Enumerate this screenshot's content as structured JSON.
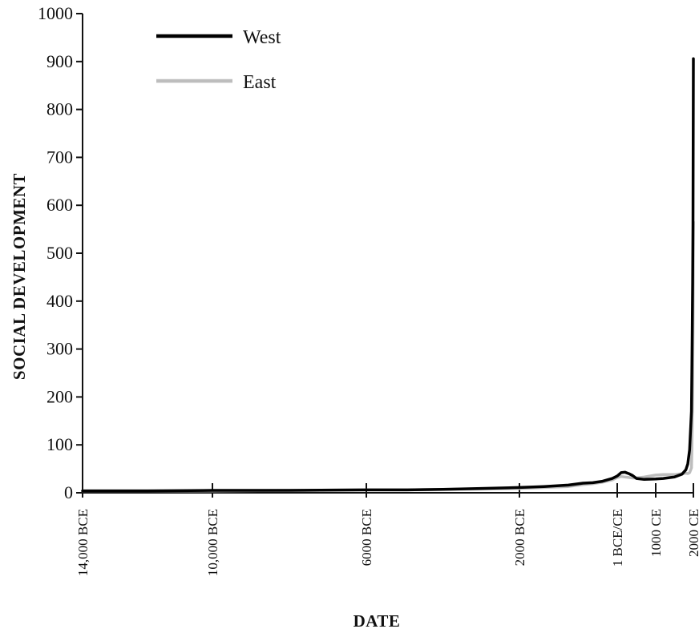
{
  "chart_data": {
    "type": "line",
    "title": "",
    "xlabel": "DATE",
    "ylabel": "SOCIAL DEVELOPMENT",
    "ylim": [
      0,
      1000
    ],
    "xlim": [
      -14000,
      2000
    ],
    "yticks": [
      0,
      100,
      200,
      300,
      400,
      500,
      600,
      700,
      800,
      900,
      1000
    ],
    "ytick_labels": [
      "0",
      "100",
      "200",
      "300",
      "400",
      "500",
      "600",
      "700",
      "800",
      "900",
      "1000"
    ],
    "xticks": [
      -14000,
      -10000,
      -6000,
      -2000,
      0,
      1000,
      2000
    ],
    "xtick_labels": [
      "14,000 BCE",
      "10,000 BCE",
      "6000 BCE",
      "2000 BCE",
      "1 BCE/CE",
      "1000 CE",
      "2000 CE"
    ],
    "legend_position": "top-left",
    "series": [
      {
        "name": "West",
        "color": "#000000",
        "x": [
          -14000,
          -12000,
          -10000,
          -8000,
          -6000,
          -5000,
          -4000,
          -3000,
          -2000,
          -1500,
          -1000,
          -700,
          -500,
          -300,
          -100,
          0,
          100,
          200,
          300,
          400,
          500,
          700,
          1000,
          1200,
          1400,
          1500,
          1600,
          1700,
          1800,
          1850,
          1900,
          1950,
          1960,
          1970,
          1980,
          1990,
          2000
        ],
        "y": [
          4,
          4,
          5,
          5,
          6,
          6,
          7,
          9,
          11,
          13,
          16,
          20,
          21,
          24,
          30,
          35,
          42,
          43,
          40,
          36,
          30,
          28,
          29,
          30,
          32,
          33,
          36,
          39,
          48,
          60,
          90,
          170,
          250,
          340,
          440,
          560,
          906
        ]
      },
      {
        "name": "East",
        "color": "#bdbdbd",
        "x": [
          -14000,
          -12000,
          -10000,
          -8000,
          -6000,
          -5000,
          -4000,
          -3000,
          -2000,
          -1500,
          -1000,
          -700,
          -500,
          -300,
          -100,
          0,
          100,
          200,
          300,
          400,
          500,
          700,
          1000,
          1200,
          1400,
          1500,
          1600,
          1700,
          1800,
          1850,
          1900,
          1950,
          1960,
          1970,
          1980,
          1990,
          2000
        ],
        "y": [
          4,
          4,
          4,
          5,
          6,
          6,
          7,
          8,
          9,
          11,
          13,
          17,
          19,
          22,
          27,
          32,
          34,
          33,
          32,
          31,
          31,
          33,
          37,
          38,
          38,
          38,
          39,
          40,
          41,
          40,
          42,
          52,
          90,
          150,
          230,
          350,
          565
        ]
      }
    ]
  }
}
